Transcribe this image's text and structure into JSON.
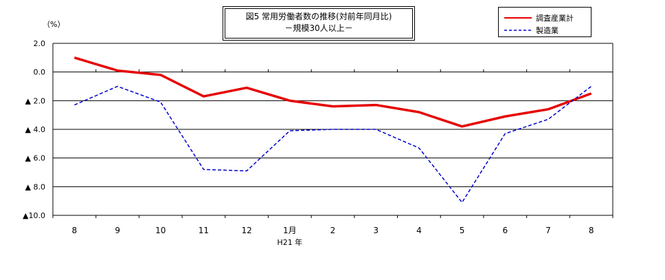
{
  "chart_data": {
    "type": "line",
    "title": "図5 常用労働者数の推移(対前年同月比)",
    "subtitle": "－規模30人以上－",
    "unit_label": "（%）",
    "categories": [
      "8",
      "9",
      "10",
      "11",
      "12",
      "1月",
      "2",
      "3",
      "4",
      "5",
      "6",
      "7",
      "8"
    ],
    "x_sublabel": "H21 年",
    "y_tick_labels": [
      "2.0",
      "0.0",
      "▲ 2.0",
      "▲ 4.0",
      "▲ 6.0",
      "▲ 8.0",
      "▲10.0"
    ],
    "y_ticks": [
      2,
      0,
      -2,
      -4,
      -6,
      -8,
      -10
    ],
    "ylim": [
      -10,
      2
    ],
    "grid": true,
    "legend_position": "top-right",
    "series": [
      {
        "name": "調査産業計",
        "color": "#e60000",
        "style": "solid",
        "values": [
          1.0,
          0.1,
          -0.2,
          -1.7,
          -1.1,
          -2.0,
          -2.4,
          -2.3,
          -2.8,
          -3.8,
          -3.1,
          -2.6,
          -1.5
        ]
      },
      {
        "name": "製造業",
        "color": "#0000cc",
        "style": "dashed",
        "values": [
          -2.3,
          -1.0,
          -2.1,
          -6.8,
          -6.9,
          -4.1,
          -4.0,
          -4.0,
          -5.3,
          -9.1,
          -4.3,
          -3.3,
          -1.0
        ]
      }
    ]
  }
}
